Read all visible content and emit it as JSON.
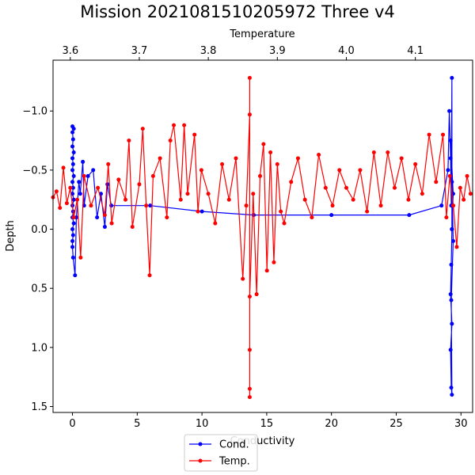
{
  "chart_data": {
    "type": "line",
    "title": "Mission 2021081510205972 Three v4",
    "xlabel": "Conductivity",
    "ylabel": "Depth",
    "top_xlabel": "Temperature",
    "xlim": [
      -1.5,
      30.9
    ],
    "ylim": [
      1.55,
      -1.43
    ],
    "y_inverted": true,
    "top_xlim": [
      3.575,
      4.183
    ],
    "grid": false,
    "legend_position": "lower-center",
    "xticks": [
      0,
      5,
      10,
      15,
      20,
      25,
      30
    ],
    "yticks": [
      -1.0,
      -0.5,
      0.0,
      0.5,
      1.0,
      1.5
    ],
    "ytick_labels": [
      "−1.0",
      "−0.5",
      "0.0",
      "0.5",
      "1.0",
      "1.5"
    ],
    "top_xticks": [
      3.6,
      3.7,
      3.8,
      3.9,
      4.0,
      4.1
    ],
    "series": [
      {
        "name": "Cond.",
        "axis": "bottom",
        "color": "#0000ff",
        "points": [
          [
            0.0,
            -0.87
          ],
          [
            0.1,
            -0.85
          ],
          [
            0.0,
            -0.82
          ],
          [
            0.05,
            -0.76
          ],
          [
            0.0,
            -0.7
          ],
          [
            0.1,
            -0.65
          ],
          [
            0.0,
            -0.6
          ],
          [
            0.05,
            -0.55
          ],
          [
            0.0,
            -0.5
          ],
          [
            0.1,
            -0.45
          ],
          [
            0.0,
            -0.4
          ],
          [
            0.05,
            -0.35
          ],
          [
            0.0,
            -0.3
          ],
          [
            0.1,
            -0.25
          ],
          [
            0.0,
            -0.2
          ],
          [
            0.05,
            -0.15
          ],
          [
            0.0,
            -0.1
          ],
          [
            0.1,
            -0.05
          ],
          [
            0.0,
            0.0
          ],
          [
            0.05,
            0.05
          ],
          [
            0.0,
            0.1
          ],
          [
            0.0,
            0.15
          ],
          [
            0.05,
            0.24
          ],
          [
            0.2,
            0.39
          ],
          [
            0.3,
            -0.1
          ],
          [
            0.5,
            -0.4
          ],
          [
            0.6,
            -0.3
          ],
          [
            0.8,
            -0.57
          ],
          [
            0.9,
            -0.2
          ],
          [
            1.2,
            -0.45
          ],
          [
            1.6,
            -0.5
          ],
          [
            1.9,
            -0.1
          ],
          [
            2.2,
            -0.3
          ],
          [
            2.5,
            -0.02
          ],
          [
            2.7,
            -0.38
          ],
          [
            3.0,
            -0.2
          ],
          [
            6.0,
            -0.2
          ],
          [
            10.0,
            -0.15
          ],
          [
            14.0,
            -0.12
          ],
          [
            20.0,
            -0.12
          ],
          [
            26.0,
            -0.12
          ],
          [
            28.5,
            -0.2
          ],
          [
            29.0,
            -0.5
          ],
          [
            29.1,
            -1.0
          ],
          [
            29.2,
            -0.6
          ],
          [
            29.25,
            -0.2
          ],
          [
            29.3,
            -1.28
          ],
          [
            29.3,
            0.0
          ],
          [
            29.25,
            0.3
          ],
          [
            29.2,
            0.55
          ],
          [
            29.3,
            0.8
          ],
          [
            29.2,
            1.02
          ],
          [
            29.25,
            1.34
          ],
          [
            29.3,
            1.4
          ],
          [
            29.25,
            0.6
          ],
          [
            29.4,
            0.1
          ],
          [
            29.3,
            -0.4
          ],
          [
            29.2,
            -0.75
          ],
          [
            29.4,
            -0.3
          ],
          [
            29.3,
            0.0
          ]
        ]
      },
      {
        "name": "Temp.",
        "axis": "top",
        "color": "#ff0000",
        "points": [
          [
            3.575,
            -0.27
          ],
          [
            3.58,
            -0.32
          ],
          [
            3.585,
            -0.18
          ],
          [
            3.59,
            -0.52
          ],
          [
            3.595,
            -0.22
          ],
          [
            3.6,
            -0.35
          ],
          [
            3.605,
            -0.1
          ],
          [
            3.61,
            -0.25
          ],
          [
            3.615,
            0.24
          ],
          [
            3.62,
            -0.45
          ],
          [
            3.63,
            -0.2
          ],
          [
            3.64,
            -0.35
          ],
          [
            3.65,
            -0.12
          ],
          [
            3.655,
            -0.55
          ],
          [
            3.66,
            -0.05
          ],
          [
            3.67,
            -0.42
          ],
          [
            3.68,
            -0.25
          ],
          [
            3.685,
            -0.75
          ],
          [
            3.69,
            -0.02
          ],
          [
            3.7,
            -0.38
          ],
          [
            3.705,
            -0.85
          ],
          [
            3.71,
            -0.2
          ],
          [
            3.715,
            0.39
          ],
          [
            3.72,
            -0.45
          ],
          [
            3.73,
            -0.6
          ],
          [
            3.74,
            -0.1
          ],
          [
            3.745,
            -0.75
          ],
          [
            3.75,
            -0.88
          ],
          [
            3.76,
            -0.25
          ],
          [
            3.765,
            -0.88
          ],
          [
            3.77,
            -0.3
          ],
          [
            3.78,
            -0.8
          ],
          [
            3.785,
            -0.15
          ],
          [
            3.79,
            -0.5
          ],
          [
            3.8,
            -0.3
          ],
          [
            3.81,
            -0.05
          ],
          [
            3.82,
            -0.55
          ],
          [
            3.83,
            -0.25
          ],
          [
            3.84,
            -0.6
          ],
          [
            3.85,
            0.42
          ],
          [
            3.855,
            -0.2
          ],
          [
            3.86,
            -0.97
          ],
          [
            3.86,
            -1.28
          ],
          [
            3.86,
            1.42
          ],
          [
            3.86,
            1.35
          ],
          [
            3.86,
            1.02
          ],
          [
            3.86,
            0.57
          ],
          [
            3.865,
            -0.3
          ],
          [
            3.87,
            0.55
          ],
          [
            3.875,
            -0.45
          ],
          [
            3.88,
            -0.72
          ],
          [
            3.885,
            0.35
          ],
          [
            3.89,
            -0.65
          ],
          [
            3.895,
            0.28
          ],
          [
            3.9,
            -0.55
          ],
          [
            3.905,
            -0.15
          ],
          [
            3.91,
            -0.05
          ],
          [
            3.92,
            -0.4
          ],
          [
            3.93,
            -0.6
          ],
          [
            3.94,
            -0.25
          ],
          [
            3.95,
            -0.1
          ],
          [
            3.96,
            -0.63
          ],
          [
            3.97,
            -0.35
          ],
          [
            3.98,
            -0.2
          ],
          [
            3.99,
            -0.5
          ],
          [
            4.0,
            -0.35
          ],
          [
            4.01,
            -0.25
          ],
          [
            4.02,
            -0.5
          ],
          [
            4.03,
            -0.15
          ],
          [
            4.04,
            -0.65
          ],
          [
            4.05,
            -0.2
          ],
          [
            4.06,
            -0.65
          ],
          [
            4.07,
            -0.35
          ],
          [
            4.08,
            -0.6
          ],
          [
            4.09,
            -0.25
          ],
          [
            4.1,
            -0.55
          ],
          [
            4.11,
            -0.3
          ],
          [
            4.12,
            -0.8
          ],
          [
            4.13,
            -0.4
          ],
          [
            4.14,
            -0.8
          ],
          [
            4.145,
            -0.1
          ],
          [
            4.15,
            -0.45
          ],
          [
            4.155,
            -0.2
          ],
          [
            4.16,
            0.15
          ],
          [
            4.165,
            -0.35
          ],
          [
            4.17,
            -0.25
          ],
          [
            4.175,
            -0.45
          ],
          [
            4.18,
            -0.3
          ]
        ]
      }
    ]
  }
}
